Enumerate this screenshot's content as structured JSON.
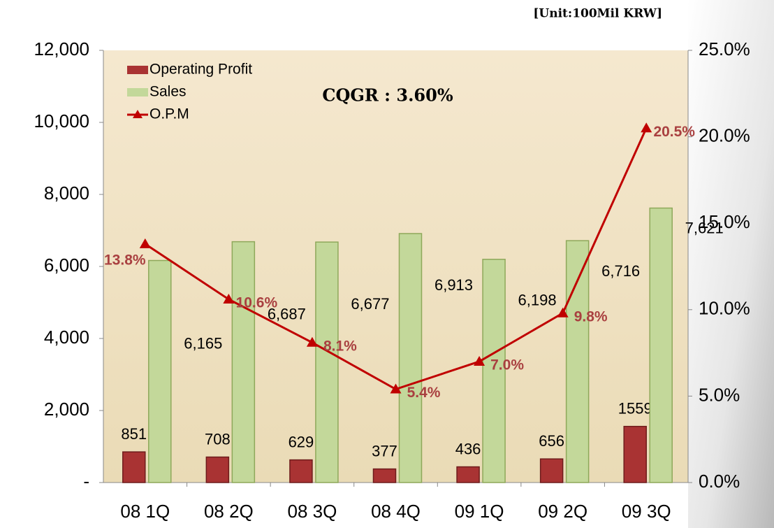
{
  "chart_data": {
    "type": "bar",
    "title": "CQGR : 3.60%",
    "subtitle": "[Unit:100Mil KRW]",
    "categories": [
      "08 1Q",
      "08 2Q",
      "08 3Q",
      "08 4Q",
      "09 1Q",
      "09 2Q",
      "09 3Q"
    ],
    "series": [
      {
        "name": "Operating Profit",
        "color": "#a93333",
        "values": [
          851,
          708,
          629,
          377,
          436,
          656,
          1559
        ]
      },
      {
        "name": "Sales",
        "color": "#c3d89a",
        "values": [
          6165,
          6687,
          6677,
          6913,
          6198,
          6716,
          7621
        ],
        "value_labels": [
          "6,165",
          "6,687",
          "6,677",
          "6,913",
          "6,198",
          "6,716",
          "7,621"
        ]
      },
      {
        "name": "O.P.M",
        "color": "#c00000",
        "type": "line",
        "axis": "y2",
        "values": [
          13.8,
          10.6,
          8.1,
          5.4,
          7.0,
          9.8,
          20.5
        ],
        "value_labels": [
          "13.8%",
          "10.6%",
          "8.1%",
          "5.4%",
          "7.0%",
          "9.8%",
          "20.5%"
        ]
      }
    ],
    "ylim": [
      0,
      12000
    ],
    "yticks": [
      {
        "value": 0,
        "label": "-"
      },
      {
        "value": 2000,
        "label": "2,000"
      },
      {
        "value": 4000,
        "label": "4,000"
      },
      {
        "value": 6000,
        "label": "6,000"
      },
      {
        "value": 8000,
        "label": "8,000"
      },
      {
        "value": 10000,
        "label": "10,000"
      },
      {
        "value": 12000,
        "label": "12,000"
      }
    ],
    "y2lim": [
      0,
      25
    ],
    "y2ticks": [
      {
        "value": 0,
        "label": "0.0%"
      },
      {
        "value": 5,
        "label": "5.0%"
      },
      {
        "value": 10,
        "label": "10.0%"
      },
      {
        "value": 15,
        "label": "15.0%"
      },
      {
        "value": 20,
        "label": "20.0%"
      },
      {
        "value": 25,
        "label": "25.0%"
      }
    ],
    "legend": "upper left"
  }
}
